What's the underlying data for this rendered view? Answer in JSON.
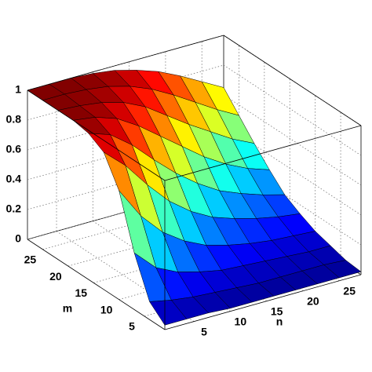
{
  "chart_data": {
    "type": "surface",
    "xlabel": "n",
    "ylabel": "m",
    "x": [
      1,
      4,
      7,
      10,
      13,
      16,
      19,
      22,
      25,
      28
    ],
    "y": [
      1,
      4,
      7,
      10,
      13,
      16,
      19,
      22,
      25,
      28
    ],
    "z": [
      [
        0.03,
        0.03,
        0.03,
        0.02,
        0.02,
        0.02,
        0.02,
        0.02,
        0.02,
        0.02
      ],
      [
        0.12,
        0.09,
        0.07,
        0.06,
        0.05,
        0.04,
        0.04,
        0.04,
        0.04,
        0.03
      ],
      [
        0.38,
        0.24,
        0.17,
        0.13,
        0.1,
        0.09,
        0.08,
        0.07,
        0.06,
        0.06
      ],
      [
        0.73,
        0.52,
        0.37,
        0.27,
        0.2,
        0.16,
        0.13,
        0.11,
        0.1,
        0.09
      ],
      [
        0.92,
        0.79,
        0.62,
        0.47,
        0.36,
        0.28,
        0.23,
        0.19,
        0.16,
        0.14
      ],
      [
        0.98,
        0.93,
        0.82,
        0.68,
        0.55,
        0.44,
        0.35,
        0.29,
        0.24,
        0.2
      ],
      [
        1,
        0.98,
        0.93,
        0.84,
        0.73,
        0.62,
        0.51,
        0.42,
        0.35,
        0.3
      ],
      [
        1,
        0.99,
        0.97,
        0.93,
        0.86,
        0.76,
        0.66,
        0.57,
        0.48,
        0.41
      ],
      [
        1,
        1,
        0.99,
        0.97,
        0.93,
        0.87,
        0.79,
        0.7,
        0.61,
        0.53
      ],
      [
        1,
        1,
        1,
        0.99,
        0.97,
        0.93,
        0.88,
        0.81,
        0.73,
        0.65
      ]
    ],
    "xlim": [
      1,
      28
    ],
    "ylim": [
      1,
      28
    ],
    "zlim": [
      0,
      1
    ],
    "xticks": [
      5,
      10,
      15,
      20,
      25
    ],
    "yticks": [
      5,
      10,
      15,
      20,
      25
    ],
    "zticks": [
      0,
      0.2,
      0.4,
      0.6,
      0.8,
      1
    ],
    "grid": true,
    "colormap": "jet"
  }
}
